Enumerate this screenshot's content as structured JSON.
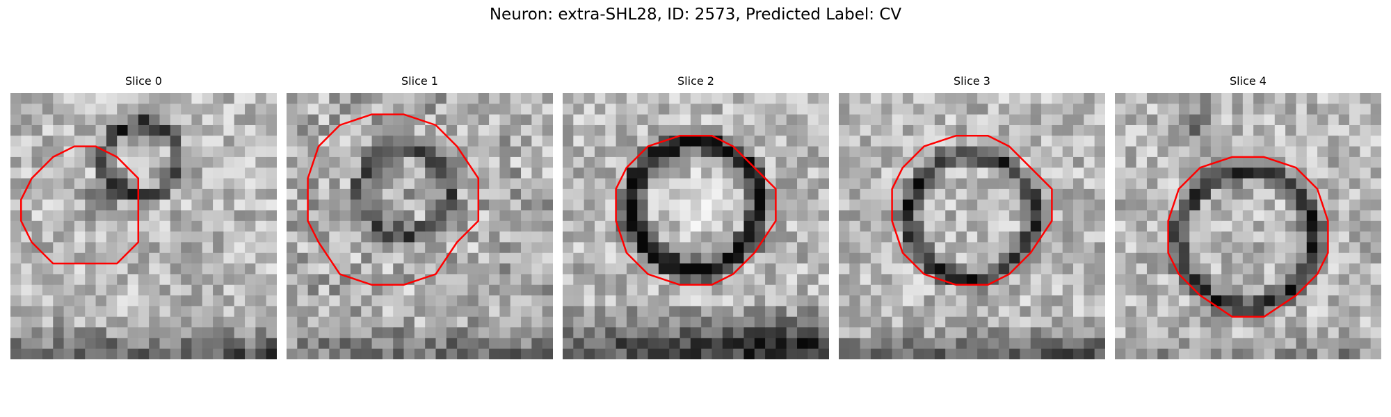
{
  "figure": {
    "title": "Neuron: extra-SHL28, ID: 2573, Predicted Label: CV"
  },
  "panels": [
    {
      "title": "Slice 0",
      "contour_color": "#ff0000"
    },
    {
      "title": "Slice 1",
      "contour_color": "#ff0000"
    },
    {
      "title": "Slice 2",
      "contour_color": "#ff0000"
    },
    {
      "title": "Slice 3",
      "contour_color": "#ff0000"
    },
    {
      "title": "Slice 4",
      "contour_color": "#ff0000"
    }
  ]
}
